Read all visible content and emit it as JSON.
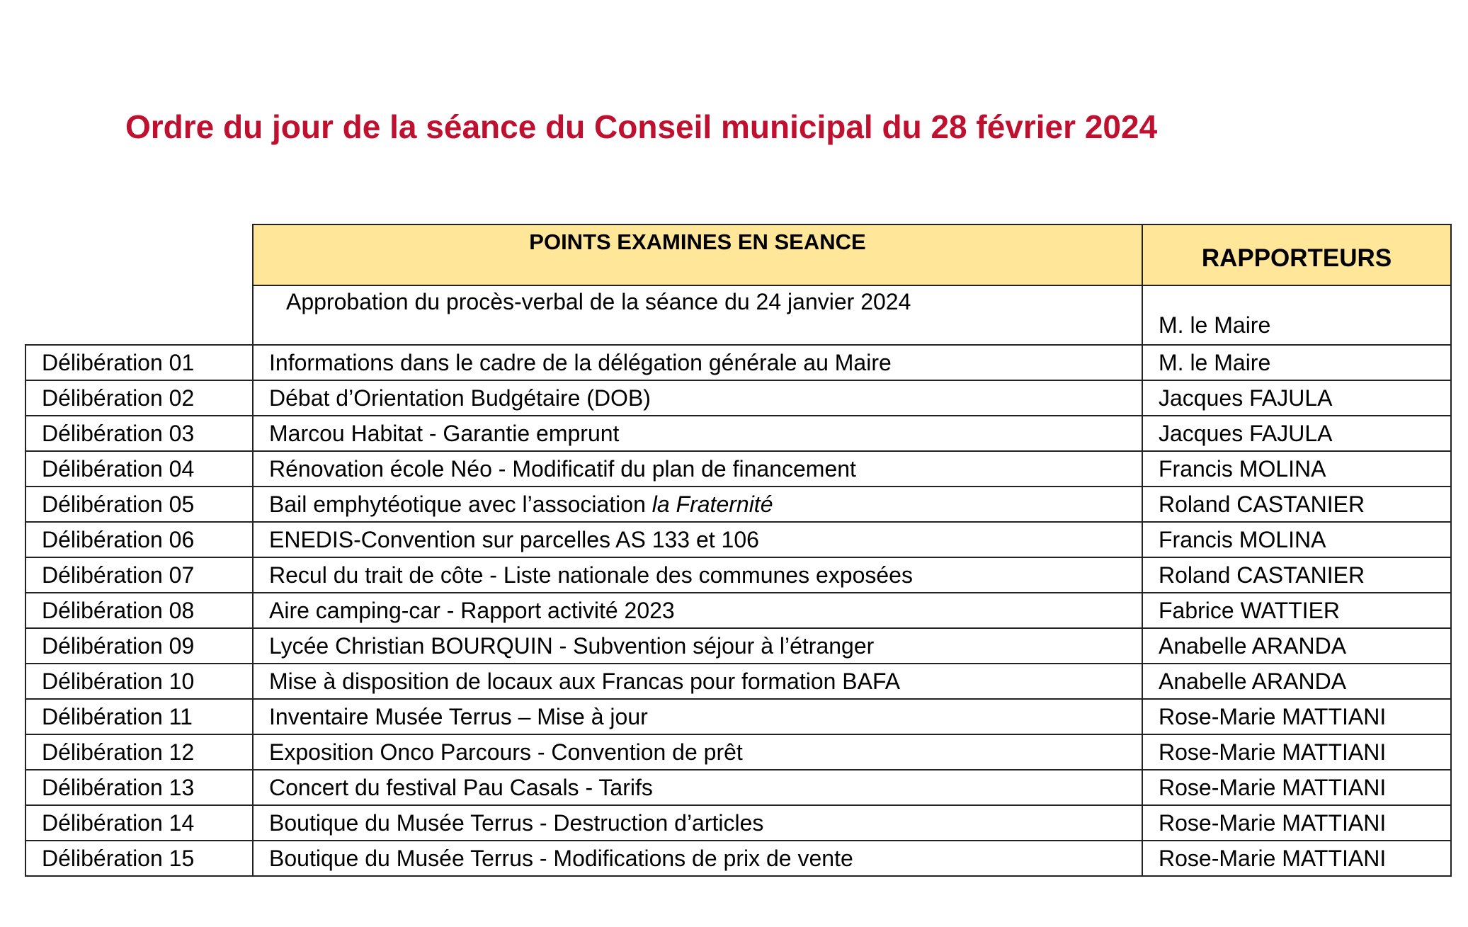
{
  "title": "Ordre du jour de la séance du Conseil municipal du 28 février 2024",
  "colors": {
    "title": "#C0102F",
    "header_bg": "#FFE699"
  },
  "table": {
    "headers": {
      "points": "POINTS EXAMINES EN SEANCE",
      "rapporteurs": "RAPPORTEURS"
    },
    "first": {
      "point": "Approbation du procès-verbal de la séance du 24 janvier 2024",
      "rapporteur": "M. le Maire"
    },
    "rows": [
      {
        "num": "Délibération 01",
        "point": "Informations dans le cadre de la délégation générale au Maire",
        "rapporteur": "M. le Maire"
      },
      {
        "num": "Délibération 02",
        "point": "Débat d’Orientation Budgétaire (DOB)",
        "rapporteur": "Jacques FAJULA"
      },
      {
        "num": "Délibération 03",
        "point": "Marcou Habitat - Garantie emprunt",
        "rapporteur": "Jacques FAJULA"
      },
      {
        "num": "Délibération 04",
        "point": "Rénovation école Néo - Modificatif du plan de financement",
        "rapporteur": "Francis MOLINA"
      },
      {
        "num": "Délibération 05",
        "point": "Bail emphytéotique avec l’association ",
        "point_italic": "la Fraternité",
        "rapporteur": "Roland CASTANIER"
      },
      {
        "num": "Délibération 06",
        "point": "ENEDIS-Convention sur parcelles AS 133 et 106",
        "rapporteur": "Francis MOLINA"
      },
      {
        "num": "Délibération 07",
        "point": "Recul du trait de côte - Liste nationale des communes exposées",
        "rapporteur": "Roland CASTANIER"
      },
      {
        "num": "Délibération 08",
        "point": "Aire camping-car - Rapport activité 2023",
        "rapporteur": "Fabrice WATTIER"
      },
      {
        "num": "Délibération 09",
        "point": "Lycée Christian BOURQUIN - Subvention séjour à l’étranger",
        "rapporteur": "Anabelle ARANDA"
      },
      {
        "num": "Délibération 10",
        "point": "Mise à disposition de locaux aux Francas pour formation BAFA",
        "rapporteur": "Anabelle ARANDA"
      },
      {
        "num": "Délibération 11",
        "point": "Inventaire Musée Terrus – Mise à jour",
        "rapporteur": "Rose-Marie MATTIANI"
      },
      {
        "num": "Délibération 12",
        "point": "Exposition Onco Parcours - Convention de prêt",
        "rapporteur": "Rose-Marie MATTIANI"
      },
      {
        "num": "Délibération 13",
        "point": "Concert du festival Pau Casals - Tarifs",
        "rapporteur": "Rose-Marie MATTIANI"
      },
      {
        "num": "Délibération 14",
        "point": "Boutique du Musée Terrus - Destruction d’articles",
        "rapporteur": "Rose-Marie MATTIANI"
      },
      {
        "num": "Délibération 15",
        "point": "Boutique du Musée Terrus - Modifications de prix de vente",
        "rapporteur": "Rose-Marie MATTIANI"
      }
    ]
  }
}
